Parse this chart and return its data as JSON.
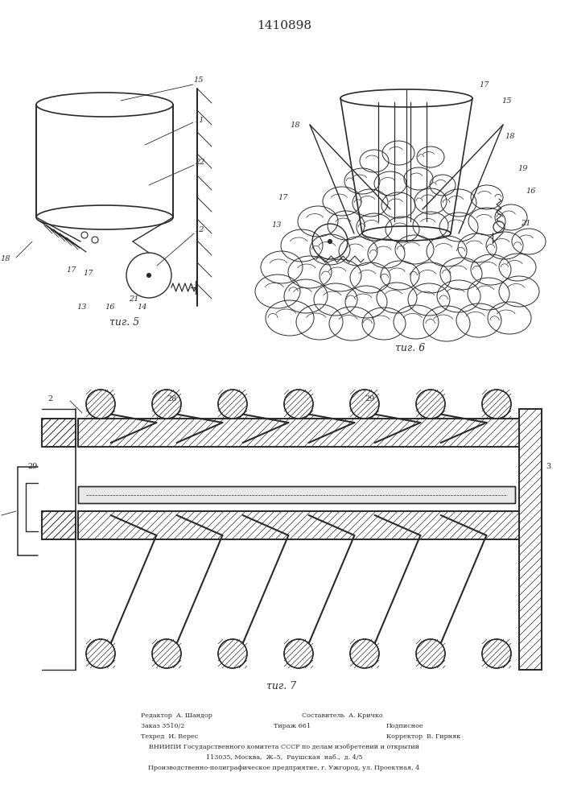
{
  "patent_number": "1410898",
  "background_color": "#ffffff",
  "line_color": "#2a2a2a",
  "fig5_caption": "τиг. 5",
  "fig6_caption": "τиг. 6",
  "fig7_caption": "τиг. 7",
  "footer_line1a": "Редактор  А. Шандор",
  "footer_line1b": "Составитель  А. Кричко",
  "footer_line2a": "Заказ 3510/2",
  "footer_line2b": "Тираж 661",
  "footer_line2c": "Подписное",
  "footer_line3a": "Техред  И. Верес",
  "footer_line3b": "Корректор  В. Гирняк",
  "footer_line4": "ВНИИПИ Государственного комитета СССР по делам изобретений и открытий",
  "footer_line5": "113035, Москва,  Ж–5,  Раушская  наб.,  д. 4/5",
  "footer_line6": "Производственно-полиграфическое предприятие, г. Ужгород, ул. Проектная, 4"
}
